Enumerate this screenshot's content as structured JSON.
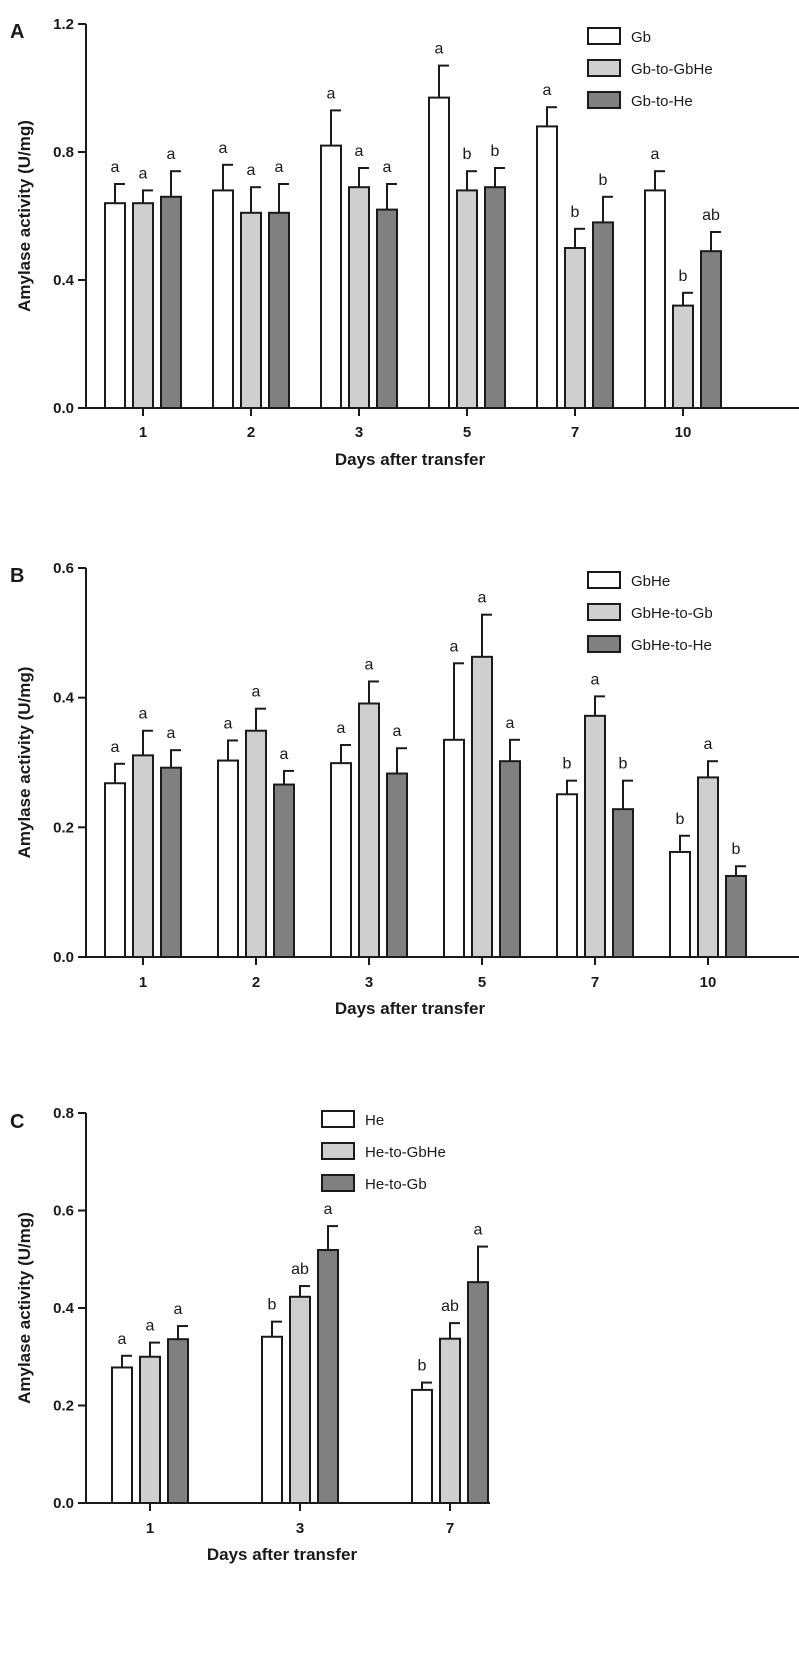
{
  "chart_data": [
    {
      "panel": "A",
      "type": "bar",
      "xlabel": "Days after transfer",
      "ylabel": "Amylase activity (U/mg)",
      "ylim": [
        0,
        1.2
      ],
      "yticks": [
        "0.0",
        "0.4",
        "0.8",
        "1.2"
      ],
      "categories": [
        "1",
        "2",
        "3",
        "5",
        "7",
        "10"
      ],
      "legend_position": "top-right",
      "series": [
        {
          "name": "Gb",
          "color": "#ffffff",
          "values": [
            0.64,
            0.68,
            0.82,
            0.97,
            0.88,
            0.68
          ],
          "errors": [
            0.06,
            0.08,
            0.11,
            0.1,
            0.06,
            0.06
          ],
          "labels": [
            "a",
            "a",
            "a",
            "a",
            "a",
            "a"
          ]
        },
        {
          "name": "Gb-to-GbHe",
          "color": "#cfcfcf",
          "values": [
            0.64,
            0.61,
            0.69,
            0.68,
            0.5,
            0.32
          ],
          "errors": [
            0.04,
            0.08,
            0.06,
            0.06,
            0.06,
            0.04
          ],
          "labels": [
            "a",
            "a",
            "a",
            "b",
            "b",
            "b"
          ]
        },
        {
          "name": "Gb-to-He",
          "color": "#808080",
          "values": [
            0.66,
            0.61,
            0.62,
            0.69,
            0.58,
            0.49
          ],
          "errors": [
            0.08,
            0.09,
            0.08,
            0.06,
            0.08,
            0.06
          ],
          "labels": [
            "a",
            "a",
            "a",
            "b",
            "b",
            "ab"
          ]
        }
      ]
    },
    {
      "panel": "B",
      "type": "bar",
      "xlabel": "Days after transfer",
      "ylabel": "Amylase activity (U/mg)",
      "ylim": [
        0,
        0.6
      ],
      "yticks": [
        "0.0",
        "0.2",
        "0.4",
        "0.6"
      ],
      "categories": [
        "1",
        "2",
        "3",
        "5",
        "7",
        "10"
      ],
      "legend_position": "top-right",
      "series": [
        {
          "name": "GbHe",
          "color": "#ffffff",
          "values": [
            0.268,
            0.303,
            0.299,
            0.335,
            0.251,
            0.162
          ],
          "errors": [
            0.03,
            0.031,
            0.028,
            0.118,
            0.021,
            0.025
          ],
          "labels": [
            "a",
            "a",
            "a",
            "a",
            "b",
            "b"
          ]
        },
        {
          "name": "GbHe-to-Gb",
          "color": "#cfcfcf",
          "values": [
            0.311,
            0.349,
            0.391,
            0.463,
            0.372,
            0.277
          ],
          "errors": [
            0.038,
            0.034,
            0.034,
            0.065,
            0.03,
            0.025
          ],
          "labels": [
            "a",
            "a",
            "a",
            "a",
            "a",
            "a"
          ]
        },
        {
          "name": "GbHe-to-He",
          "color": "#808080",
          "values": [
            0.292,
            0.266,
            0.283,
            0.302,
            0.228,
            0.125
          ],
          "errors": [
            0.027,
            0.021,
            0.039,
            0.033,
            0.044,
            0.015
          ],
          "labels": [
            "a",
            "a",
            "a",
            "a",
            "b",
            "b"
          ]
        }
      ]
    },
    {
      "panel": "C",
      "type": "bar",
      "xlabel": "Days after transfer",
      "ylabel": "Amylase activity (U/mg)",
      "ylim": [
        0,
        0.8
      ],
      "yticks": [
        "0.0",
        "0.2",
        "0.4",
        "0.6",
        "0.8"
      ],
      "categories": [
        "1",
        "3",
        "7"
      ],
      "legend_position": "top",
      "series": [
        {
          "name": "He",
          "color": "#ffffff",
          "values": [
            0.278,
            0.341,
            0.232
          ],
          "errors": [
            0.024,
            0.031,
            0.015
          ],
          "labels": [
            "a",
            "b",
            "b"
          ]
        },
        {
          "name": "He-to-GbHe",
          "color": "#cfcfcf",
          "values": [
            0.3,
            0.423,
            0.337
          ],
          "errors": [
            0.029,
            0.022,
            0.032
          ],
          "labels": [
            "a",
            "ab",
            "ab"
          ]
        },
        {
          "name": "He-to-Gb",
          "color": "#808080",
          "values": [
            0.336,
            0.519,
            0.453
          ],
          "errors": [
            0.027,
            0.049,
            0.073
          ],
          "labels": [
            "a",
            "a",
            "a"
          ]
        }
      ]
    }
  ]
}
